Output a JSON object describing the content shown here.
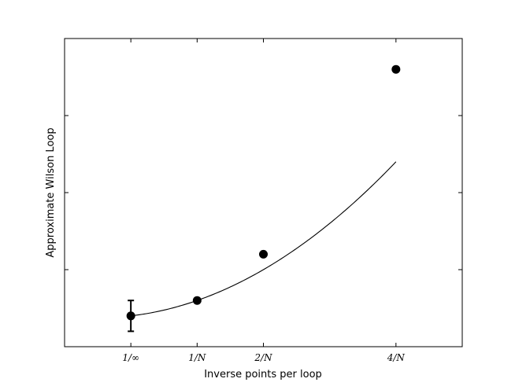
{
  "chart_data": {
    "type": "scatter",
    "title": "",
    "xlabel": "Inverse points per loop",
    "ylabel": "Approximate Wilson Loop",
    "xlim": [
      -1,
      5
    ],
    "ylim": [
      0,
      1
    ],
    "grid": false,
    "x_ticks": [
      {
        "value": 0,
        "label": "1/∞"
      },
      {
        "value": 1,
        "label": "1/N"
      },
      {
        "value": 2,
        "label": "2/N"
      },
      {
        "value": 4,
        "label": "4/N"
      }
    ],
    "y_ticks": [
      0.25,
      0.5,
      0.75
    ],
    "points": [
      {
        "x": 0,
        "y": 0.1,
        "error": 0.05
      },
      {
        "x": 1,
        "y": 0.15
      },
      {
        "x": 2,
        "y": 0.3
      },
      {
        "x": 4,
        "y": 0.9
      }
    ],
    "fit": {
      "type": "quadratic",
      "x_range": [
        0,
        4
      ],
      "coefficients": [
        0.1,
        0.025,
        0.025
      ]
    },
    "colors": {
      "marker": "#000000",
      "line": "#000000"
    }
  }
}
